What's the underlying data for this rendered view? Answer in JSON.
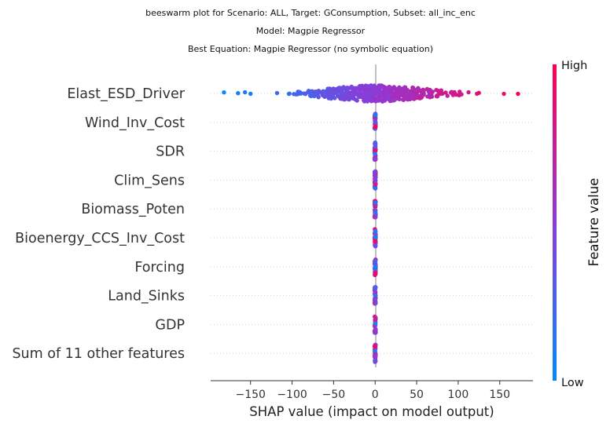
{
  "titles": [
    "beeswarm plot for Scenario: ALL, Target: GConsumption, Subset: all_inc_enc",
    "Model: Magpie Regressor",
    "Best Equation: Magpie Regressor (no symbolic equation)"
  ],
  "chart_data": {
    "type": "scatter",
    "subtype": "shap-beeswarm",
    "xlabel": "SHAP value (impact on model output)",
    "xlim": [
      -198,
      190
    ],
    "xticks": [
      -150,
      -100,
      -50,
      0,
      50,
      100,
      150
    ],
    "features": [
      {
        "name": "Elast_ESD_Driver",
        "range": [
          -182,
          172
        ],
        "spread": "wide"
      },
      {
        "name": "Wind_Inv_Cost",
        "range": [
          0,
          0
        ],
        "spread": "zero"
      },
      {
        "name": "SDR",
        "range": [
          0,
          0
        ],
        "spread": "zero"
      },
      {
        "name": "Clim_Sens",
        "range": [
          0,
          0
        ],
        "spread": "zero"
      },
      {
        "name": "Biomass_Poten",
        "range": [
          0,
          0
        ],
        "spread": "zero"
      },
      {
        "name": "Bioenergy_CCS_Inv_Cost",
        "range": [
          0,
          0
        ],
        "spread": "zero"
      },
      {
        "name": "Forcing",
        "range": [
          0,
          0
        ],
        "spread": "zero"
      },
      {
        "name": "Land_Sinks",
        "range": [
          0,
          0
        ],
        "spread": "zero"
      },
      {
        "name": "GDP",
        "range": [
          0,
          0
        ],
        "spread": "zero"
      },
      {
        "name": "Sum of 11 other features",
        "range": [
          0,
          0
        ],
        "spread": "zero"
      }
    ],
    "colorbar": {
      "title": "Feature value",
      "high_label": "High",
      "low_label": "Low",
      "low_color": "#008bfb",
      "mid_color": "#8c3bd8",
      "high_color": "#ff0052"
    },
    "grid": "dotted-row-lines"
  }
}
